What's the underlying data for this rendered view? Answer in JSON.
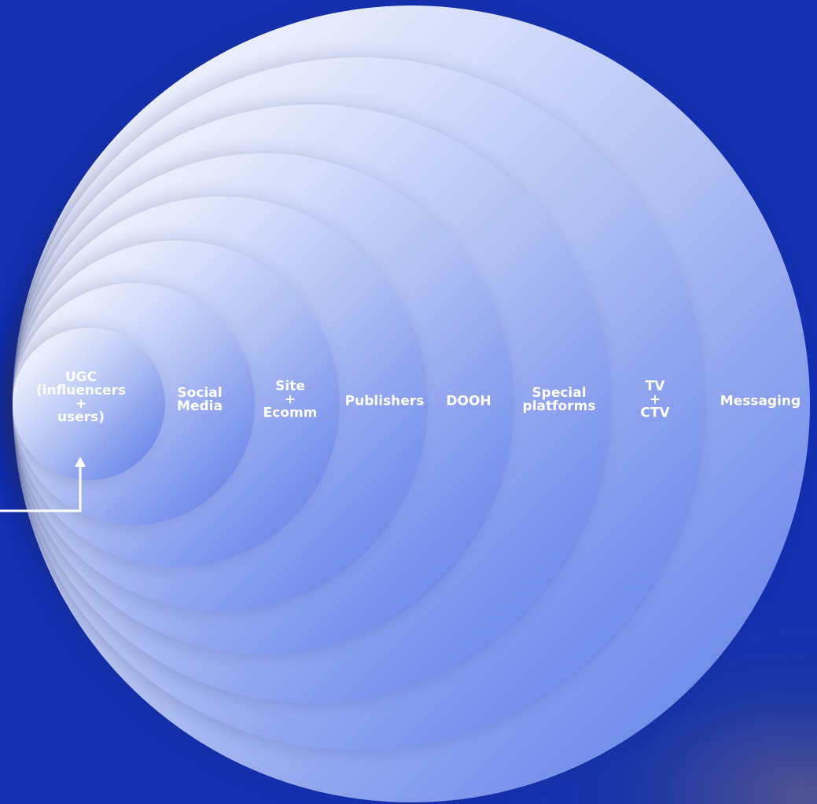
{
  "diagram": {
    "rings": [
      {
        "id": "messaging",
        "lines": [
          "Messaging"
        ]
      },
      {
        "id": "tv-ctv",
        "lines": [
          "TV",
          "+",
          "CTV"
        ]
      },
      {
        "id": "special-platforms",
        "lines": [
          "Special",
          "platforms"
        ]
      },
      {
        "id": "dooh",
        "lines": [
          "DOOH"
        ]
      },
      {
        "id": "publishers",
        "lines": [
          "Publishers"
        ]
      },
      {
        "id": "site-ecomm",
        "lines": [
          "Site",
          "+",
          "Ecomm"
        ]
      },
      {
        "id": "social-media",
        "lines": [
          "Social",
          "Media"
        ]
      },
      {
        "id": "ugc",
        "lines": [
          "UGC",
          "(influencers",
          "+",
          "users)"
        ]
      }
    ],
    "colors": {
      "background": "#1330b0",
      "ring_light": "#fbfbff",
      "ring_dark": "#5b78e6",
      "label": "#ffffff",
      "connector": "#ffffff"
    },
    "icons": [
      "arrow-up-icon"
    ]
  }
}
